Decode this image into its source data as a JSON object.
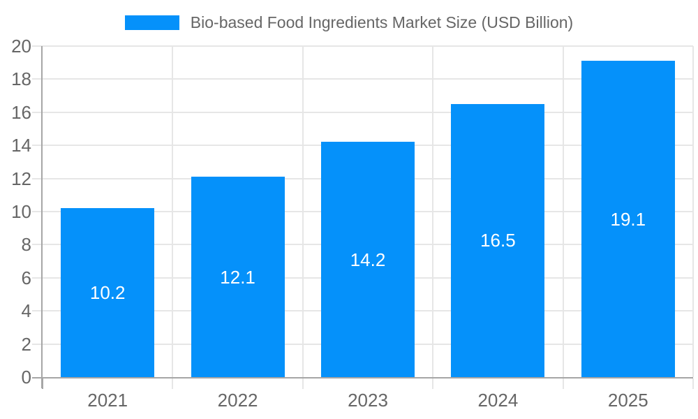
{
  "chart_data": {
    "type": "bar",
    "title": "Bio-based Food Ingredients Market Size (USD Billion)",
    "categories": [
      "2021",
      "2022",
      "2023",
      "2024",
      "2025"
    ],
    "values": [
      10.2,
      12.1,
      14.2,
      16.5,
      19.1
    ],
    "value_labels": [
      "10.2",
      "12.1",
      "14.2",
      "16.5",
      "19.1"
    ],
    "xlabel": "",
    "ylabel": "",
    "ylim": [
      0,
      20
    ],
    "yticks": [
      0,
      2,
      4,
      6,
      8,
      10,
      12,
      14,
      16,
      18,
      20
    ],
    "grid": true,
    "legend_position": "top",
    "colors": {
      "bar": "#0591fa",
      "grid": "#e6e6e6",
      "axis": "#a6a6a6",
      "tick_text": "#666666",
      "value_label_text": "#ffffff"
    }
  }
}
